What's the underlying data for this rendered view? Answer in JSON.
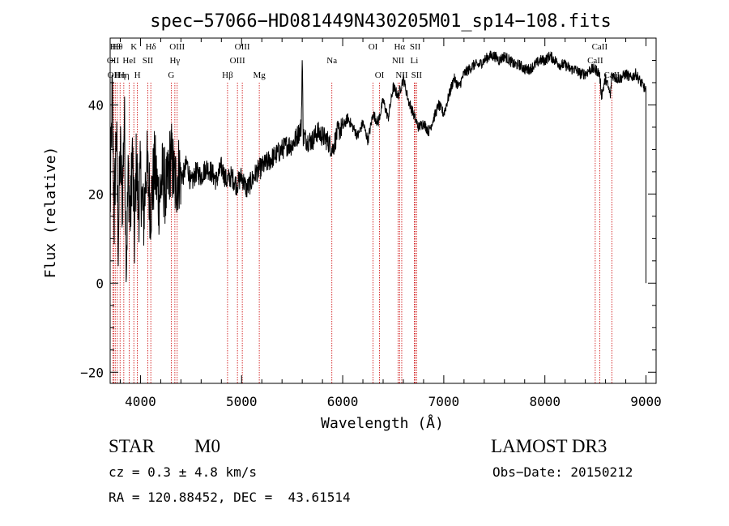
{
  "chart_data": {
    "type": "line",
    "title": "spec−57066−HD081449N430205M01_sp14−108.fits",
    "xlabel": "Wavelength (Å)",
    "ylabel": "Flux (relative)",
    "xlim": [
      3700,
      9100
    ],
    "ylim": [
      -22.5,
      55
    ],
    "xticks": [
      4000,
      5000,
      6000,
      7000,
      8000,
      9000
    ],
    "xtick_labels": [
      "4000",
      "5000",
      "6000",
      "7000",
      "8000",
      "9000"
    ],
    "yticks": [
      -20,
      0,
      20,
      40
    ],
    "ytick_labels": [
      "−20",
      "0",
      "20",
      "40"
    ],
    "series": [
      {
        "name": "flux",
        "x": [
          3700,
          3720,
          3740,
          3760,
          3780,
          3800,
          3820,
          3840,
          3860,
          3880,
          3900,
          3920,
          3940,
          3960,
          3980,
          4000,
          4030,
          4060,
          4100,
          4140,
          4180,
          4220,
          4260,
          4300,
          4340,
          4380,
          4420,
          4460,
          4500,
          4550,
          4600,
          4650,
          4700,
          4750,
          4800,
          4850,
          4900,
          4950,
          5000,
          5050,
          5100,
          5150,
          5200,
          5250,
          5300,
          5350,
          5400,
          5450,
          5500,
          5550,
          5590,
          5600,
          5610,
          5650,
          5700,
          5750,
          5800,
          5850,
          5900,
          5950,
          6000,
          6050,
          6100,
          6150,
          6200,
          6250,
          6300,
          6350,
          6400,
          6450,
          6500,
          6550,
          6600,
          6650,
          6700,
          6750,
          6800,
          6850,
          6900,
          6950,
          7000,
          7050,
          7100,
          7150,
          7200,
          7250,
          7300,
          7350,
          7400,
          7450,
          7500,
          7550,
          7600,
          7650,
          7700,
          7750,
          7800,
          7850,
          7900,
          7950,
          8000,
          8050,
          8100,
          8150,
          8200,
          8250,
          8300,
          8350,
          8400,
          8450,
          8500,
          8540,
          8560,
          8600,
          8650,
          8660,
          8700,
          8750,
          8800,
          8850,
          8900,
          8950,
          8980,
          9000
        ],
        "y": [
          16,
          43,
          14,
          35,
          10,
          30,
          18,
          38,
          5,
          25,
          14,
          30,
          10,
          28,
          16,
          24,
          14,
          27,
          17,
          26,
          19,
          24,
          20,
          29,
          22,
          25,
          24,
          27,
          22,
          25,
          24,
          26,
          25,
          23,
          26,
          23,
          24,
          22,
          24,
          21,
          23,
          25,
          26,
          27,
          28,
          29,
          30,
          31,
          31,
          33,
          35,
          50,
          33,
          32,
          32,
          34,
          33,
          32,
          30,
          34,
          35,
          37,
          35,
          33,
          36,
          32,
          38,
          36,
          41,
          37,
          44,
          42,
          46,
          41,
          38,
          35,
          36,
          34,
          37,
          40,
          38,
          42,
          46,
          44,
          47,
          48,
          49,
          49,
          50,
          51,
          51,
          50,
          51,
          50,
          49,
          49,
          48,
          48,
          49,
          50,
          50,
          51,
          50,
          49,
          49,
          48,
          48,
          47,
          47,
          48,
          48,
          47,
          42,
          46,
          42,
          47,
          46,
          46,
          47,
          46,
          47,
          45,
          44,
          43
        ]
      }
    ],
    "lines": [
      {
        "x": 3728,
        "label": "OII",
        "row": 1
      },
      {
        "x": 3734,
        "label": "OII",
        "row": 2
      },
      {
        "x": 3750,
        "label": "Hθ",
        "row": 0
      },
      {
        "x": 3771,
        "label": "Hθ",
        "row": 0
      },
      {
        "x": 3798,
        "label": "Hη",
        "row": 2
      },
      {
        "x": 3835,
        "label": "Hη",
        "row": 2
      },
      {
        "x": 3889,
        "label": "HeI",
        "row": 1
      },
      {
        "x": 3934,
        "label": "K",
        "row": 0
      },
      {
        "x": 3969,
        "label": "H",
        "row": 2
      },
      {
        "x": 4072,
        "label": "SII",
        "row": 1
      },
      {
        "x": 4102,
        "label": "Hδ",
        "row": 0
      },
      {
        "x": 4304,
        "label": "G",
        "row": 2
      },
      {
        "x": 4340,
        "label": "Hγ",
        "row": 1
      },
      {
        "x": 4363,
        "label": "OIII",
        "row": 0
      },
      {
        "x": 4861,
        "label": "Hβ",
        "row": 2
      },
      {
        "x": 4959,
        "label": "OIII",
        "row": 1
      },
      {
        "x": 5007,
        "label": "OIII",
        "row": 0
      },
      {
        "x": 5175,
        "label": "Mg",
        "row": 2
      },
      {
        "x": 5893,
        "label": "Na",
        "row": 1
      },
      {
        "x": 6300,
        "label": "OI",
        "row": 0
      },
      {
        "x": 6364,
        "label": "OI",
        "row": 2
      },
      {
        "x": 6548,
        "label": "NII",
        "row": 1
      },
      {
        "x": 6563,
        "label": "Hα",
        "row": 0
      },
      {
        "x": 6584,
        "label": "NII",
        "row": 2
      },
      {
        "x": 6708,
        "label": "Li",
        "row": 1
      },
      {
        "x": 6717,
        "label": "SII",
        "row": 0
      },
      {
        "x": 6731,
        "label": "SII",
        "row": 2
      },
      {
        "x": 8498,
        "label": "CaII",
        "row": 1
      },
      {
        "x": 8542,
        "label": "CaII",
        "row": 0
      },
      {
        "x": 8662,
        "label": "CaII",
        "row": 2
      }
    ]
  },
  "info": {
    "object_class": "STAR",
    "subclass": "M0",
    "survey": "LAMOST DR3",
    "cz": "cz = 0.3 ± 4.8 km/s",
    "obs_date": "Obs−Date: 20150212",
    "coords": "RA = 120.88452, DEC =  43.61514"
  },
  "colors": {
    "line": "#000000",
    "marker": "#cc0000"
  }
}
